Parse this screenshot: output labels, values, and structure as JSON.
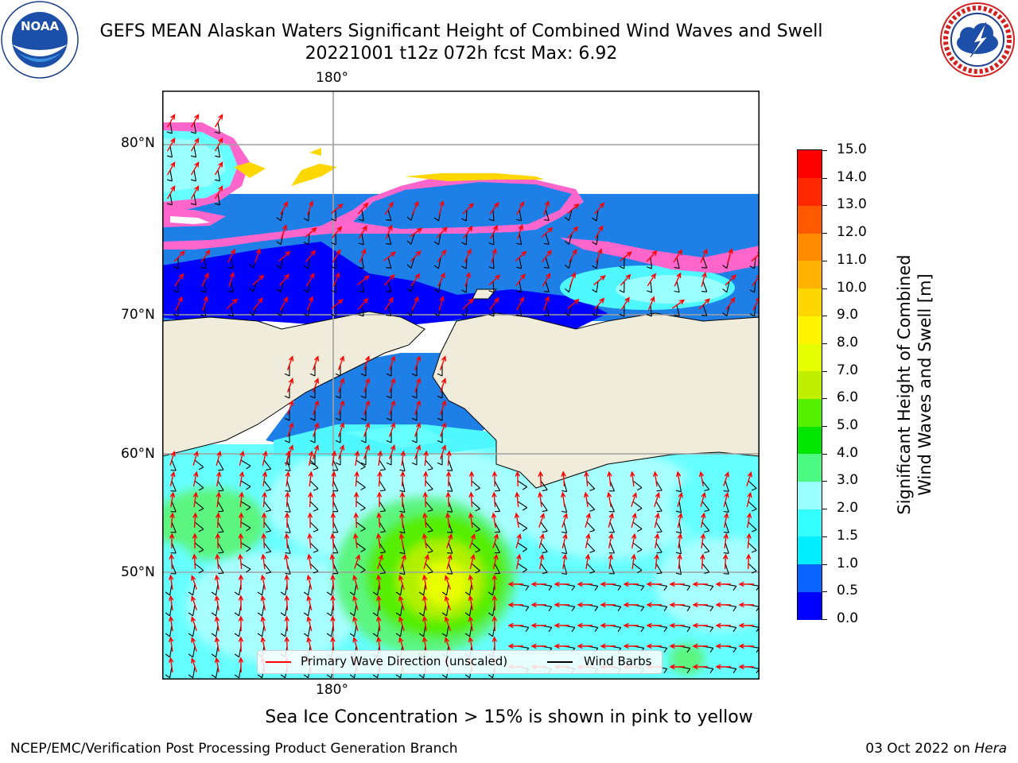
{
  "title_line1": "GEFS MEAN Alaskan Waters Significant Height of Combined Wind Waves and Swell",
  "title_line2": "20221001 t12z 072h fcst   Max: 6.92",
  "logos": {
    "left": "NOAA",
    "left_ring": "NATIONAL OCEANIC AND ATMOSPHERIC ADMINISTRATION · U.S. DEPARTMENT OF COMMERCE",
    "right_ring": "NATIONAL WEATHER SERVICE"
  },
  "map": {
    "lon_label_top": "180°",
    "lon_label_bottom": "180°",
    "lat_labels": [
      "80°N",
      "70°N",
      "60°N",
      "50°N"
    ]
  },
  "colorbar": {
    "title_line1": "Significant Height of Combined",
    "title_line2": "Wind Waves and Swell [m]",
    "ticks": [
      "0.0",
      "0.5",
      "1.0",
      "1.5",
      "2.0",
      "3.0",
      "4.0",
      "5.0",
      "6.0",
      "7.0",
      "8.0",
      "9.0",
      "10.0",
      "11.0",
      "12.0",
      "13.0",
      "14.0",
      "15.0"
    ],
    "colors": [
      "#0000ff",
      "#0a64ff",
      "#00eeff",
      "#33ffff",
      "#99ffff",
      "#4cfa82",
      "#00e600",
      "#55f000",
      "#c0f000",
      "#e6ff00",
      "#fff500",
      "#ffd700",
      "#ffb000",
      "#ff8c00",
      "#ff5a00",
      "#ff2800",
      "#ff0000"
    ]
  },
  "legend": {
    "wave_label": "Primary Wave Direction (unscaled)",
    "wind_label": "Wind Barbs",
    "wave_color": "#ff0000",
    "wind_color": "#000000"
  },
  "sea_ice_note": "Sea Ice Concentration > 15% is shown in pink to yellow",
  "footer_left": "NCEP/EMC/Verification Post Processing Product Generation Branch",
  "footer_right_date": "03 Oct 2022 on ",
  "footer_right_host": "Hera"
}
